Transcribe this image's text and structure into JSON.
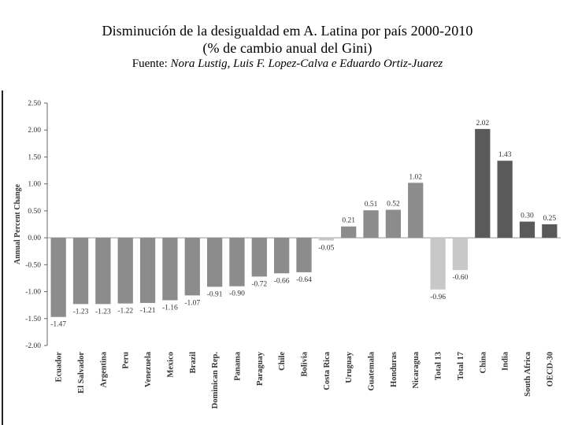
{
  "header": {
    "title_line1": "Disminución de la desigualdad em A. Latina por país 2000-2010",
    "title_line2": "(% de cambio anual del Gini)",
    "source_label": "Fuente:",
    "source_authors": "Nora Lustig, Luis F. Lopez-Calva e Eduardo Ortiz-Juarez"
  },
  "chart_data": {
    "type": "bar",
    "title": "Disminución de la desigualdad em A. Latina por país 2000-2010 (% de cambio anual del Gini)",
    "xlabel": "",
    "ylabel": "Annual Percent Change",
    "ylim": [
      -2.0,
      2.5
    ],
    "yticks": [
      2.5,
      2.0,
      1.5,
      1.0,
      0.5,
      0.0,
      -0.5,
      -1.0,
      -1.5,
      -2.0
    ],
    "ytick_labels": [
      "2.50",
      "2.00",
      "1.50",
      "1.00",
      "0.50",
      "0.00",
      "-0.50",
      "-1.00",
      "-1.50",
      "-2.00"
    ],
    "categories": [
      "Ecuador",
      "El Salvador",
      "Argentina",
      "Peru",
      "Venezuela",
      "Mexico",
      "Brazil",
      "Dominican Rep.",
      "Panama",
      "Paraguay",
      "Chile",
      "Bolivia",
      "Costa Rica",
      "Uruguay",
      "Guatemala",
      "Honduras",
      "Nicaragua",
      "Total 13",
      "Total 17",
      "China",
      "India",
      "South Africa",
      "OECD-30"
    ],
    "values": [
      -1.47,
      -1.23,
      -1.23,
      -1.22,
      -1.21,
      -1.16,
      -1.07,
      -0.91,
      -0.9,
      -0.72,
      -0.66,
      -0.64,
      -0.05,
      0.21,
      0.51,
      0.52,
      1.02,
      -0.96,
      -0.6,
      2.02,
      1.43,
      0.3,
      0.25
    ],
    "value_labels": [
      "-1.47",
      "-1.23",
      "-1.23",
      "-1.22",
      "-1.21",
      "-1.16",
      "-1.07",
      "-0.91",
      "-0.90",
      "-0.72",
      "-0.66",
      "-0.64",
      "-0.05",
      "0.21",
      "0.51",
      "0.52",
      "1.02",
      "-0.96",
      "-0.60",
      "2.02",
      "1.43",
      "0.30",
      "0.25"
    ],
    "colors": [
      "#8c8c8c",
      "#8c8c8c",
      "#8c8c8c",
      "#8c8c8c",
      "#8c8c8c",
      "#8c8c8c",
      "#8c8c8c",
      "#8c8c8c",
      "#8c8c8c",
      "#8c8c8c",
      "#8c8c8c",
      "#8c8c8c",
      "#c8c8c8",
      "#8c8c8c",
      "#8c8c8c",
      "#8c8c8c",
      "#8c8c8c",
      "#c8c8c8",
      "#c8c8c8",
      "#5a5a5a",
      "#5a5a5a",
      "#5a5a5a",
      "#5a5a5a"
    ],
    "grid": false,
    "legend": "none"
  }
}
